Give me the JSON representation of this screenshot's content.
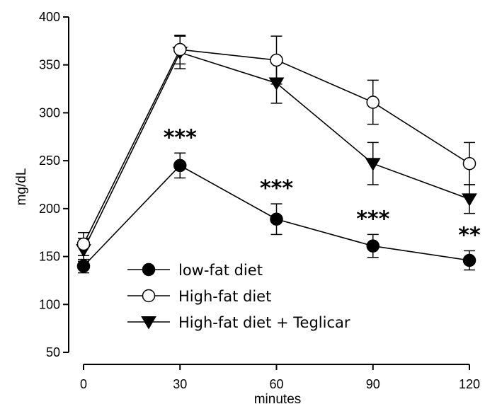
{
  "chart_data": {
    "type": "line",
    "xlabel": "minutes",
    "ylabel": "mg/dL",
    "x": [
      0,
      30,
      60,
      90,
      120
    ],
    "xticks": [
      "0",
      "30",
      "60",
      "90",
      "120"
    ],
    "yticks": [
      "50",
      "100",
      "150",
      "200",
      "250",
      "300",
      "350",
      "400"
    ],
    "xlim": [
      0,
      120
    ],
    "ylim": [
      50,
      400
    ],
    "grid": false,
    "legend_position": "bottom-left",
    "series": [
      {
        "name": "low-fat diet",
        "marker": "filled-circle",
        "values": [
          140,
          245,
          189,
          161,
          146
        ],
        "errors": [
          7,
          13,
          16,
          12,
          10
        ]
      },
      {
        "name": "High-fat diet",
        "marker": "open-circle",
        "values": [
          163,
          366,
          355,
          311,
          247
        ],
        "errors": [
          12,
          15,
          25,
          23,
          22
        ]
      },
      {
        "name": "High-fat diet + Teglicar",
        "marker": "filled-triangle-down",
        "values": [
          157,
          363,
          331,
          247,
          210
        ],
        "errors": [
          12,
          17,
          21,
          22,
          15
        ]
      }
    ],
    "annotations": [
      {
        "x": 30,
        "label": "***"
      },
      {
        "x": 60,
        "label": "***"
      },
      {
        "x": 90,
        "label": "***"
      },
      {
        "x": 120,
        "label": "**"
      }
    ]
  }
}
